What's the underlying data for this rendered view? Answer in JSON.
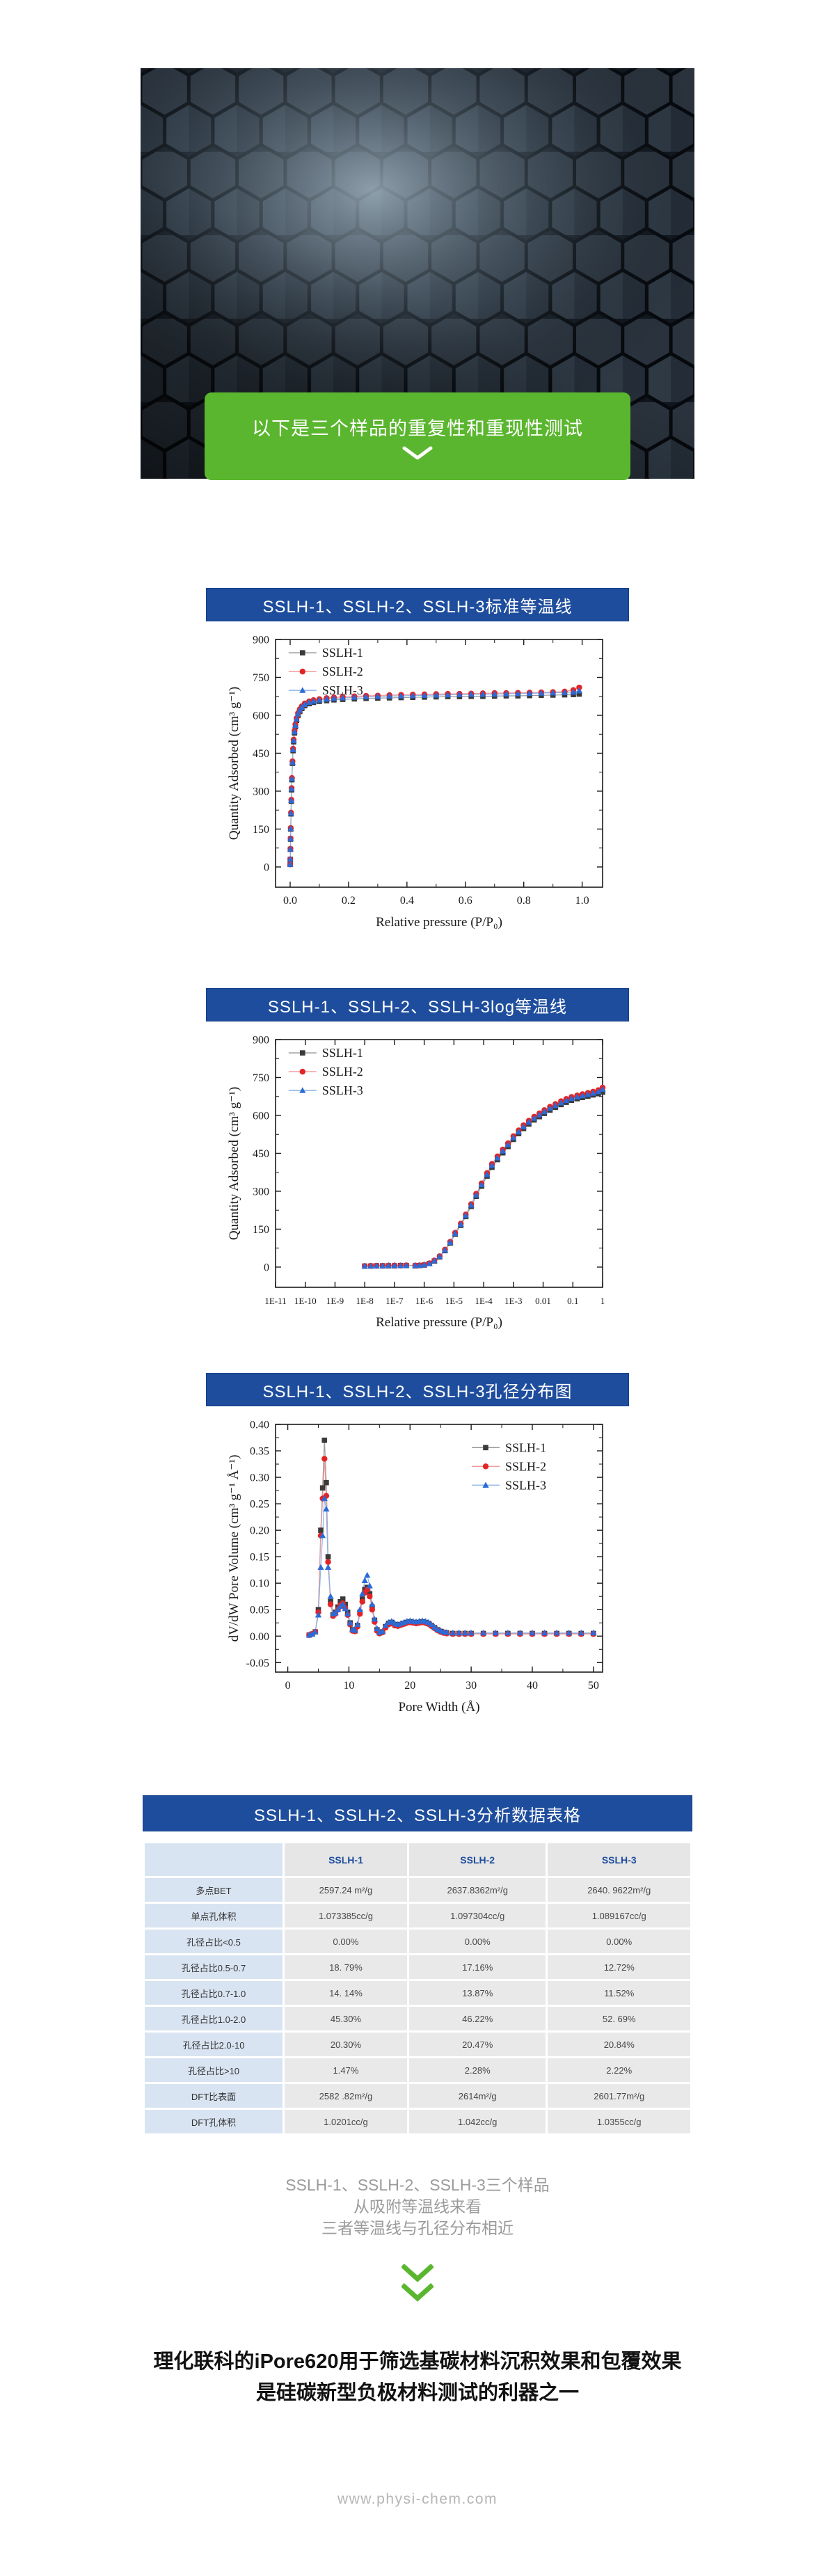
{
  "banner": {
    "text": "以下是三个样品的重复性和重现性测试",
    "accent_green": "#5ab62e"
  },
  "sections": {
    "std_isotherm_title": "SSLH-1、SSLH-2、SSLH-3标准等温线",
    "log_isotherm_title": "SSLH-1、SSLH-2、SSLH-3log等温线",
    "psd_title": "SSLH-1、SSLH-2、SSLH-3孔径分布图",
    "table_title": "SSLH-1、SSLH-2、SSLH-3分析数据表格"
  },
  "colors": {
    "title_bar_blue": "#1e4d9d",
    "series1": "#3a3a3a",
    "series2": "#e32426",
    "series3": "#2b6bd8"
  },
  "chart_data": [
    {
      "type": "line",
      "title": "SSLH-1、SSLH-2、SSLH-3标准等温线",
      "xscale": "linear",
      "xlabel": "Relative pressure (P/P₀)",
      "ylabel": "Quantity Adsorbed (cm³ g⁻¹)",
      "xlim": [
        -0.05,
        1.07
      ],
      "ylim": [
        -80,
        900
      ],
      "legend": [
        0.04,
        0.02
      ],
      "legend_position": "top-left",
      "xticks": [
        {
          "v": 0,
          "l": "0.0"
        },
        {
          "v": 0.2,
          "l": "0.2"
        },
        {
          "v": 0.4,
          "l": "0.4"
        },
        {
          "v": 0.6,
          "l": "0.6"
        },
        {
          "v": 0.8,
          "l": "0.8"
        },
        {
          "v": 1.0,
          "l": "1.0"
        }
      ],
      "yticks": [
        {
          "v": 0,
          "l": "0"
        },
        {
          "v": 150,
          "l": "150"
        },
        {
          "v": 300,
          "l": "300"
        },
        {
          "v": 450,
          "l": "450"
        },
        {
          "v": 600,
          "l": "600"
        },
        {
          "v": 750,
          "l": "750"
        },
        {
          "v": 900,
          "l": "900"
        }
      ],
      "x": [
        0.0002,
        0.0005,
        0.001,
        0.0015,
        0.002,
        0.003,
        0.004,
        0.005,
        0.006,
        0.008,
        0.01,
        0.012,
        0.015,
        0.018,
        0.022,
        0.027,
        0.033,
        0.04,
        0.05,
        0.065,
        0.08,
        0.1,
        0.125,
        0.15,
        0.18,
        0.22,
        0.26,
        0.3,
        0.34,
        0.38,
        0.42,
        0.46,
        0.5,
        0.54,
        0.58,
        0.62,
        0.66,
        0.7,
        0.74,
        0.78,
        0.82,
        0.86,
        0.9,
        0.94,
        0.97,
        0.99
      ],
      "series": [
        {
          "name": "SSLH-1",
          "marker": "square",
          "color": "#3a3a3a",
          "line": "#9a9a9a",
          "y": [
            10,
            30,
            70,
            110,
            150,
            210,
            260,
            305,
            345,
            410,
            460,
            495,
            530,
            555,
            580,
            600,
            615,
            627,
            638,
            646,
            651,
            655,
            658,
            661,
            663,
            665,
            667,
            668,
            669,
            670,
            671,
            672,
            673,
            674,
            674,
            675,
            675,
            676,
            677,
            677,
            678,
            679,
            680,
            681,
            682,
            684
          ]
        },
        {
          "name": "SSLH-2",
          "marker": "circle",
          "color": "#e32426",
          "line": "#f0999a",
          "y": [
            10,
            30,
            72,
            113,
            154,
            215,
            266,
            312,
            352,
            418,
            468,
            504,
            539,
            564,
            589,
            609,
            624,
            636,
            647,
            655,
            660,
            664,
            668,
            671,
            673,
            675,
            677,
            678,
            680,
            681,
            682,
            683,
            684,
            685,
            685,
            686,
            687,
            688,
            688,
            689,
            690,
            691,
            692,
            694,
            700,
            710
          ]
        },
        {
          "name": "SSLH-3",
          "marker": "triangle",
          "color": "#2b6bd8",
          "line": "#8ab4e8",
          "y": [
            10,
            31,
            71,
            112,
            152,
            213,
            263,
            309,
            349,
            414,
            464,
            500,
            535,
            560,
            585,
            605,
            620,
            632,
            643,
            651,
            656,
            660,
            664,
            667,
            669,
            671,
            673,
            675,
            676,
            677,
            678,
            679,
            680,
            681,
            682,
            683,
            683,
            684,
            685,
            686,
            687,
            688,
            689,
            690,
            692,
            697
          ]
        }
      ]
    },
    {
      "type": "line",
      "title": "SSLH-1、SSLH-2、SSLH-3log等温线",
      "xscale": "log",
      "xlabel": "Relative pressure (P/P₀)",
      "ylabel": "Quantity Adsorbed (cm³ g⁻¹)",
      "xlim": [
        1e-11,
        1
      ],
      "ylim": [
        -80,
        900
      ],
      "legend": [
        0.04,
        0.02
      ],
      "legend_position": "top-left",
      "xtickfs": 13,
      "xticks": [
        {
          "v": 1e-11,
          "l": "1E-11"
        },
        {
          "v": 1e-10,
          "l": "1E-10"
        },
        {
          "v": 1e-09,
          "l": "1E-9"
        },
        {
          "v": 1e-08,
          "l": "1E-8"
        },
        {
          "v": 1e-07,
          "l": "1E-7"
        },
        {
          "v": 1e-06,
          "l": "1E-6"
        },
        {
          "v": 1e-05,
          "l": "1E-5"
        },
        {
          "v": 0.0001,
          "l": "1E-4"
        },
        {
          "v": 0.001,
          "l": "1E-3"
        },
        {
          "v": 0.01,
          "l": "0.01"
        },
        {
          "v": 0.1,
          "l": "0.1"
        },
        {
          "v": 1,
          "l": "1"
        }
      ],
      "yticks": [
        {
          "v": 0,
          "l": "0"
        },
        {
          "v": 150,
          "l": "150"
        },
        {
          "v": 300,
          "l": "300"
        },
        {
          "v": 450,
          "l": "450"
        },
        {
          "v": 600,
          "l": "600"
        },
        {
          "v": 750,
          "l": "750"
        },
        {
          "v": 900,
          "l": "900"
        }
      ],
      "x": [
        1e-08,
        1.6e-08,
        2.5e-08,
        4e-08,
        6.3e-08,
        1e-07,
        1.6e-07,
        2.5e-07,
        5e-07,
        7e-07,
        1e-06,
        1.5e-06,
        2.2e-06,
        3.3e-06,
        5e-06,
        7.5e-06,
        1.1e-05,
        1.7e-05,
        2.5e-05,
        3.8e-05,
        5.6e-05,
        8.5e-05,
        0.00013,
        0.00019,
        0.00029,
        0.00044,
        0.00066,
        0.001,
        0.0015,
        0.0022,
        0.0033,
        0.005,
        0.0075,
        0.011,
        0.017,
        0.026,
        0.04,
        0.06,
        0.09,
        0.14,
        0.21,
        0.32,
        0.48,
        0.72,
        1.0
      ],
      "series": [
        {
          "name": "SSLH-1",
          "marker": "square",
          "color": "#3a3a3a",
          "line": "#9a9a9a",
          "y": [
            4,
            4,
            5,
            5,
            5,
            5,
            6,
            6,
            5,
            6,
            8,
            14,
            24,
            40,
            65,
            95,
            130,
            165,
            200,
            240,
            280,
            320,
            360,
            395,
            425,
            452,
            477,
            505,
            528,
            548,
            566,
            582,
            595,
            608,
            621,
            632,
            643,
            652,
            660,
            666,
            671,
            676,
            681,
            686,
            692
          ]
        },
        {
          "name": "SSLH-2",
          "marker": "circle",
          "color": "#e32426",
          "line": "#f0999a",
          "y": [
            4,
            5,
            5,
            5,
            6,
            6,
            6,
            7,
            6,
            7,
            9,
            15,
            26,
            43,
            69,
            100,
            136,
            172,
            208,
            249,
            290,
            331,
            372,
            408,
            438,
            465,
            490,
            518,
            541,
            561,
            579,
            595,
            608,
            621,
            634,
            645,
            656,
            665,
            673,
            679,
            684,
            689,
            694,
            700,
            710
          ]
        },
        {
          "name": "SSLH-3",
          "marker": "triangle",
          "color": "#2b6bd8",
          "line": "#8ab4e8",
          "y": [
            4,
            4,
            5,
            5,
            6,
            6,
            6,
            6,
            6,
            7,
            9,
            14,
            25,
            42,
            67,
            98,
            133,
            169,
            204,
            245,
            285,
            326,
            366,
            402,
            432,
            459,
            484,
            512,
            535,
            555,
            573,
            589,
            602,
            615,
            628,
            639,
            650,
            659,
            667,
            673,
            678,
            683,
            688,
            694,
            703
          ]
        }
      ]
    },
    {
      "type": "line",
      "title": "SSLH-1、SSLH-2、SSLH-3孔径分布图",
      "xscale": "linear",
      "xlabel": "Pore Width (Å)",
      "ylabel": "dV/dW Pore Volume (cm³ g⁻¹ Å⁻¹)",
      "xlim": [
        -2,
        51.5
      ],
      "ylim": [
        -0.068,
        0.4
      ],
      "legend": [
        0.6,
        0.06
      ],
      "legend_position": "top-right",
      "xticks": [
        {
          "v": 0,
          "l": "0"
        },
        {
          "v": 10,
          "l": "10"
        },
        {
          "v": 20,
          "l": "20"
        },
        {
          "v": 30,
          "l": "30"
        },
        {
          "v": 40,
          "l": "40"
        },
        {
          "v": 50,
          "l": "50"
        }
      ],
      "yticks": [
        {
          "v": -0.05,
          "l": "-0.05"
        },
        {
          "v": 0,
          "l": "0.00"
        },
        {
          "v": 0.05,
          "l": "0.05"
        },
        {
          "v": 0.1,
          "l": "0.10"
        },
        {
          "v": 0.15,
          "l": "0.15"
        },
        {
          "v": 0.2,
          "l": "0.20"
        },
        {
          "v": 0.25,
          "l": "0.25"
        },
        {
          "v": 0.3,
          "l": "0.30"
        },
        {
          "v": 0.35,
          "l": "0.35"
        },
        {
          "v": 0.4,
          "l": "0.40"
        }
      ],
      "x": [
        3.5,
        4,
        4.5,
        5,
        5.4,
        5.7,
        6,
        6.3,
        6.6,
        7,
        7.4,
        7.8,
        8.2,
        8.6,
        9,
        9.4,
        9.8,
        10.2,
        10.6,
        11,
        11.4,
        11.8,
        12.2,
        12.6,
        13,
        13.4,
        13.8,
        14.2,
        14.6,
        15,
        15.5,
        16,
        16.5,
        17,
        17.5,
        18,
        18.5,
        19,
        19.5,
        20,
        20.5,
        21,
        21.5,
        22,
        22.5,
        23,
        23.5,
        24,
        24.5,
        25,
        25.5,
        26,
        27,
        28,
        29,
        30,
        32,
        34,
        36,
        38,
        40,
        42,
        44,
        46,
        48,
        50
      ],
      "series": [
        {
          "name": "SSLH-1",
          "marker": "square",
          "color": "#3a3a3a",
          "line": "#9a9a9a",
          "y": [
            0.002,
            0.004,
            0.008,
            0.05,
            0.2,
            0.28,
            0.37,
            0.29,
            0.15,
            0.065,
            0.04,
            0.045,
            0.055,
            0.065,
            0.07,
            0.06,
            0.045,
            0.025,
            0.012,
            0.01,
            0.02,
            0.045,
            0.07,
            0.088,
            0.092,
            0.08,
            0.055,
            0.03,
            0.012,
            0.006,
            0.008,
            0.018,
            0.024,
            0.026,
            0.022,
            0.02,
            0.022,
            0.024,
            0.026,
            0.027,
            0.026,
            0.025,
            0.026,
            0.027,
            0.026,
            0.024,
            0.02,
            0.016,
            0.012,
            0.009,
            0.007,
            0.006,
            0.005,
            0.005,
            0.005,
            0.005,
            0.005,
            0.005,
            0.005,
            0.005,
            0.005,
            0.005,
            0.005,
            0.005,
            0.005,
            0.005
          ]
        },
        {
          "name": "SSLH-2",
          "marker": "circle",
          "color": "#e32426",
          "line": "#f0999a",
          "y": [
            0.002,
            0.004,
            0.008,
            0.045,
            0.19,
            0.26,
            0.335,
            0.265,
            0.14,
            0.06,
            0.038,
            0.042,
            0.05,
            0.058,
            0.062,
            0.053,
            0.04,
            0.022,
            0.01,
            0.009,
            0.018,
            0.042,
            0.065,
            0.082,
            0.088,
            0.075,
            0.05,
            0.027,
            0.01,
            0.005,
            0.007,
            0.016,
            0.022,
            0.024,
            0.02,
            0.019,
            0.021,
            0.023,
            0.025,
            0.026,
            0.025,
            0.024,
            0.025,
            0.026,
            0.025,
            0.023,
            0.019,
            0.015,
            0.011,
            0.008,
            0.006,
            0.005,
            0.004,
            0.004,
            0.004,
            0.004,
            0.004,
            0.004,
            0.004,
            0.004,
            0.004,
            0.004,
            0.004,
            0.004,
            0.004,
            0.004
          ]
        },
        {
          "name": "SSLH-3",
          "marker": "triangle",
          "color": "#2b6bd8",
          "line": "#8ab4e8",
          "y": [
            0.002,
            0.004,
            0.008,
            0.04,
            0.13,
            0.19,
            0.26,
            0.24,
            0.13,
            0.075,
            0.042,
            0.044,
            0.05,
            0.056,
            0.06,
            0.052,
            0.042,
            0.025,
            0.013,
            0.011,
            0.022,
            0.05,
            0.08,
            0.105,
            0.115,
            0.095,
            0.06,
            0.032,
            0.014,
            0.007,
            0.009,
            0.02,
            0.026,
            0.028,
            0.024,
            0.022,
            0.024,
            0.026,
            0.028,
            0.029,
            0.028,
            0.027,
            0.028,
            0.029,
            0.028,
            0.026,
            0.022,
            0.017,
            0.013,
            0.01,
            0.008,
            0.007,
            0.006,
            0.006,
            0.006,
            0.006,
            0.006,
            0.006,
            0.006,
            0.006,
            0.006,
            0.006,
            0.006,
            0.006,
            0.006,
            0.006
          ]
        }
      ]
    }
  ],
  "table": {
    "headers": [
      "",
      "SSLH-1",
      "SSLH-2",
      "SSLH-3"
    ],
    "rows": [
      [
        "多点BET",
        "2597.24 m²/g",
        "2637.8362m²/g",
        "2640. 9622m²/g"
      ],
      [
        "单点孔体积",
        "1.073385cc/g",
        "1.097304cc/g",
        "1.089167cc/g"
      ],
      [
        "孔径占比<0.5",
        "0.00%",
        "0.00%",
        "0.00%"
      ],
      [
        "孔径占比0.5-0.7",
        "18. 79%",
        "17.16%",
        "12.72%"
      ],
      [
        "孔径占比0.7-1.0",
        "14. 14%",
        "13.87%",
        "11.52%"
      ],
      [
        "孔径占比1.0-2.0",
        "45.30%",
        "46.22%",
        "52. 69%"
      ],
      [
        "孔径占比2.0-10",
        "20.30%",
        "20.47%",
        "20.84%"
      ],
      [
        "孔径占比>10",
        "1.47%",
        "2.28%",
        "2.22%"
      ],
      [
        "DFT比表面",
        "2582 .82m²/g",
        "2614m²/g",
        "2601.77m²/g"
      ],
      [
        "DFT孔体积",
        "1.0201cc/g",
        "1.042cc/g",
        "1.0355cc/g"
      ]
    ]
  },
  "summary": {
    "lines": [
      "SSLH-1、SSLH-2、SSLH-3三个样品",
      "从吸附等温线来看",
      "三者等温线与孔径分布相近"
    ]
  },
  "conclusion": {
    "lines": [
      "理化联科的iPore620用于筛选基碳材料沉积效果和包覆效果",
      "是硅碳新型负极材料测试的利器之一"
    ]
  },
  "footer": {
    "url": "www.physi-chem.com"
  }
}
